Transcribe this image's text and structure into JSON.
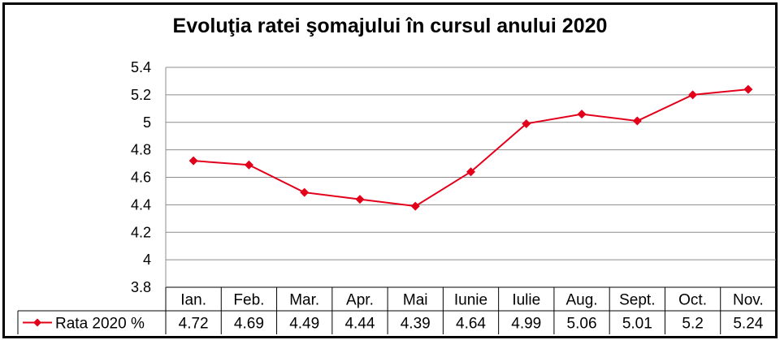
{
  "chart_data": {
    "type": "line",
    "title": "Evoluţia ratei şomajului în cursul anului 2020",
    "categories": [
      "Ian.",
      "Feb.",
      "Mar.",
      "Apr.",
      "Mai",
      "Iunie",
      "Iulie",
      "Aug.",
      "Sept.",
      "Oct.",
      "Nov."
    ],
    "series": [
      {
        "name": "Rata 2020 %",
        "values": [
          4.72,
          4.69,
          4.49,
          4.44,
          4.39,
          4.64,
          4.99,
          5.06,
          5.01,
          5.2,
          5.24
        ],
        "labels": [
          "4.72",
          "4.69",
          "4.49",
          "4.44",
          "4.39",
          "4.64",
          "4.99",
          "5.06",
          "5.01",
          "5.2",
          "5.24"
        ],
        "color": "#e3001b"
      }
    ],
    "yticks": [
      "3.8",
      "4",
      "4.2",
      "4.4",
      "4.6",
      "4.8",
      "5",
      "5.2",
      "5.4"
    ],
    "ylim": [
      3.8,
      5.4
    ],
    "grid": true,
    "legend": "data-table-left"
  }
}
